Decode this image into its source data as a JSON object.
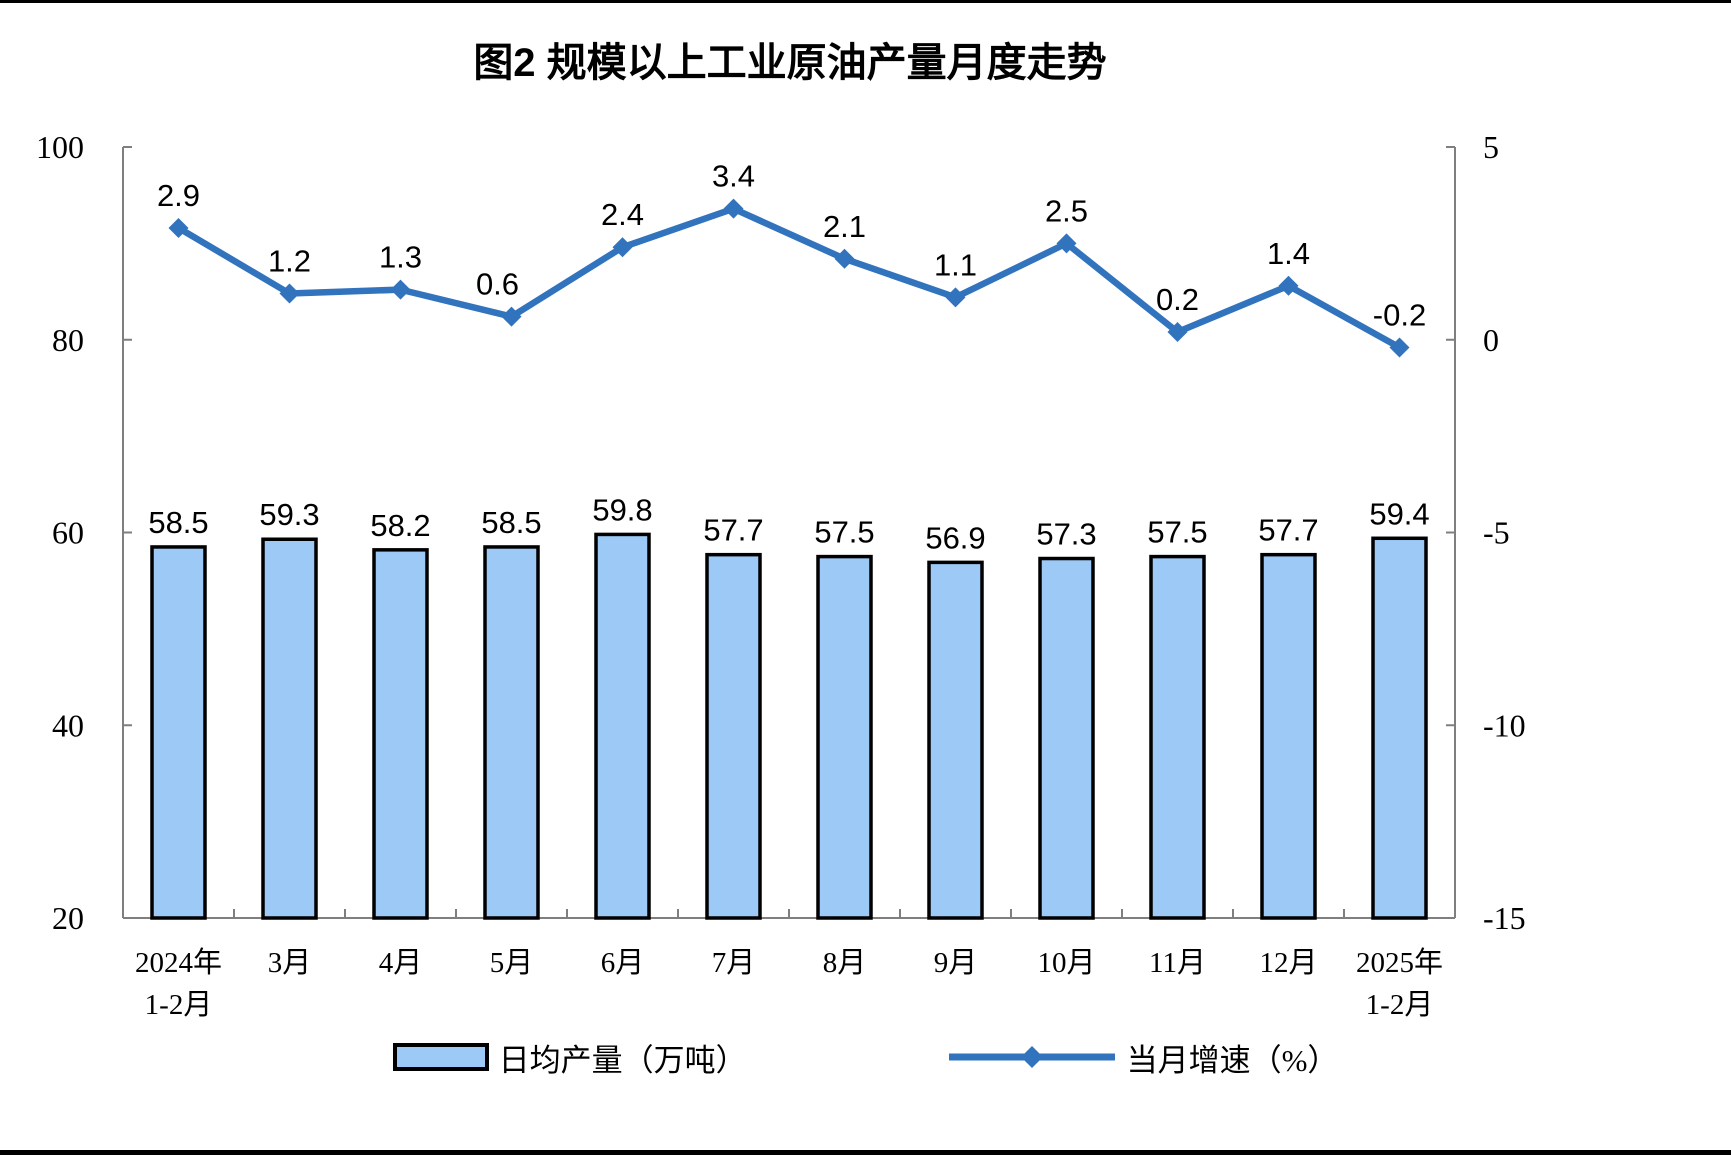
{
  "title": "图2 规模以上工业原油产量月度走势",
  "legend": {
    "bar_label": "日均产量（万吨）",
    "line_label": "当月增速（%）"
  },
  "colors": {
    "bar_fill": "#9DC9F7",
    "bar_stroke": "#000000",
    "line_color": "#3273BE",
    "axis_color": "#7F7F7F",
    "text_color": "#000000"
  },
  "chart_data": {
    "type": "bar",
    "subtype": "combo-bar-line-dual-axis",
    "title": "图2 规模以上工业原油产量月度走势",
    "categories": [
      [
        "2024年",
        "1-2月"
      ],
      [
        "3月"
      ],
      [
        "4月"
      ],
      [
        "5月"
      ],
      [
        "6月"
      ],
      [
        "7月"
      ],
      [
        "8月"
      ],
      [
        "9月"
      ],
      [
        "10月"
      ],
      [
        "11月"
      ],
      [
        "12月"
      ],
      [
        "2025年",
        "1-2月"
      ]
    ],
    "series": [
      {
        "name": "日均产量（万吨）",
        "type": "bar",
        "axis": "left",
        "values": [
          58.5,
          59.3,
          58.2,
          58.5,
          59.8,
          57.7,
          57.5,
          56.9,
          57.3,
          57.5,
          57.7,
          59.4
        ]
      },
      {
        "name": "当月增速（%）",
        "type": "line",
        "axis": "right",
        "marker": "diamond",
        "values": [
          2.9,
          1.2,
          1.3,
          0.6,
          2.4,
          3.4,
          2.1,
          1.1,
          2.5,
          0.2,
          1.4,
          -0.2
        ]
      }
    ],
    "left_axis": {
      "min": 20,
      "max": 100,
      "ticks": [
        100,
        80,
        60,
        40,
        20
      ]
    },
    "right_axis": {
      "min": -15,
      "max": 5,
      "ticks": [
        5,
        0,
        -5,
        -10,
        -15
      ]
    },
    "grid": false,
    "data_labels": true,
    "legend_position": "bottom"
  }
}
